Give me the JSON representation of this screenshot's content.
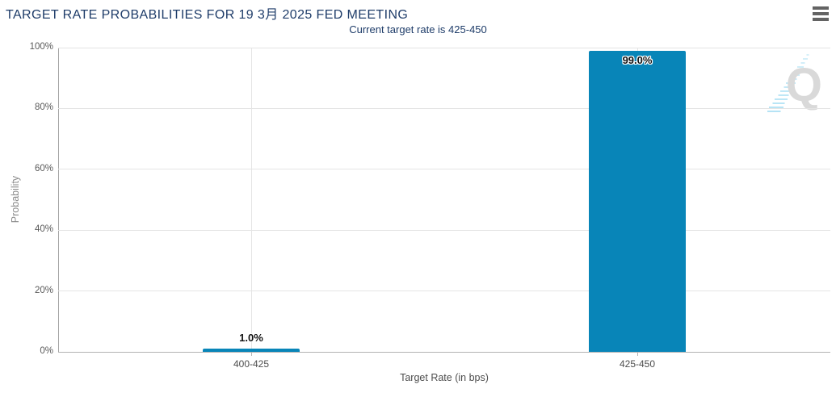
{
  "header": {
    "title": "TARGET RATE PROBABILITIES FOR 19 3月 2025 FED MEETING",
    "subtitle": "Current target rate is 425-450",
    "menu_icon": "hamburger-icon"
  },
  "chart_data": {
    "type": "bar",
    "title": "TARGET RATE PROBABILITIES FOR 19 3月 2025 FED MEETING",
    "subtitle": "Current target rate is 425-450",
    "categories": [
      "400-425",
      "425-450"
    ],
    "values": [
      1.0,
      99.0
    ],
    "value_labels": [
      "1.0%",
      "99.0%"
    ],
    "xlabel": "Target Rate (in bps)",
    "ylabel": "Probability",
    "ylim": [
      0,
      100
    ],
    "yticks": [
      0,
      20,
      40,
      60,
      80,
      100
    ],
    "ytick_labels": [
      "0%",
      "20%",
      "40%",
      "60%",
      "80%",
      "100%"
    ],
    "grid": true,
    "legend": "none",
    "bar_color": "#0885b8"
  },
  "watermark": {
    "letter": "Q",
    "swoosh_color": "#b5e3f5"
  },
  "colors": {
    "title_navy": "#1e3c69",
    "bar_blue": "#0885b8",
    "gridline": "#e4e4e4",
    "axis": "#b3b3b3",
    "tick_text": "#595959",
    "watermark_gray": "#d9d9d9",
    "watermark_blue": "#b5e3f5"
  }
}
